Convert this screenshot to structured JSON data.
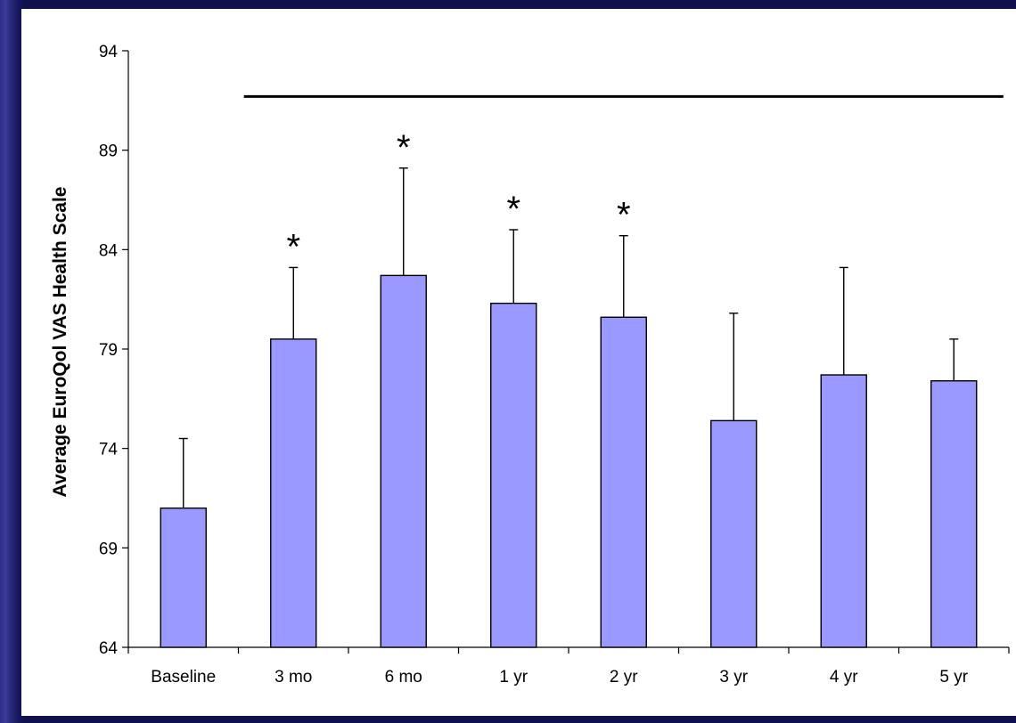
{
  "chart_data": {
    "type": "bar",
    "title": "",
    "xlabel": "",
    "ylabel": "Average EuroQol VAS Health Scale",
    "ylim": [
      64,
      94
    ],
    "yticks": [
      64,
      69,
      74,
      79,
      84,
      89,
      94
    ],
    "categories": [
      "Baseline",
      "3 mo",
      "6 mo",
      "1 yr",
      "2 yr",
      "3 yr",
      "4 yr",
      "5 yr"
    ],
    "series": [
      {
        "values": [
          71.0,
          79.5,
          82.7,
          81.3,
          80.6,
          75.4,
          77.7,
          77.4
        ],
        "error_upper": [
          74.5,
          83.1,
          88.1,
          85.0,
          84.7,
          80.8,
          83.1,
          79.5
        ]
      }
    ],
    "significance_marker": "*",
    "significant_categories": [
      "3 mo",
      "6 mo",
      "1 yr",
      "2 yr"
    ],
    "significance_line": {
      "from": "3 mo",
      "to": "5 yr",
      "y": 91.7
    },
    "grid": false,
    "legend": "none",
    "bar_color": "#9999ff",
    "bar_edge_color": "#000000",
    "background_color": "#ffffff",
    "frame_color": "#1a1a66"
  }
}
